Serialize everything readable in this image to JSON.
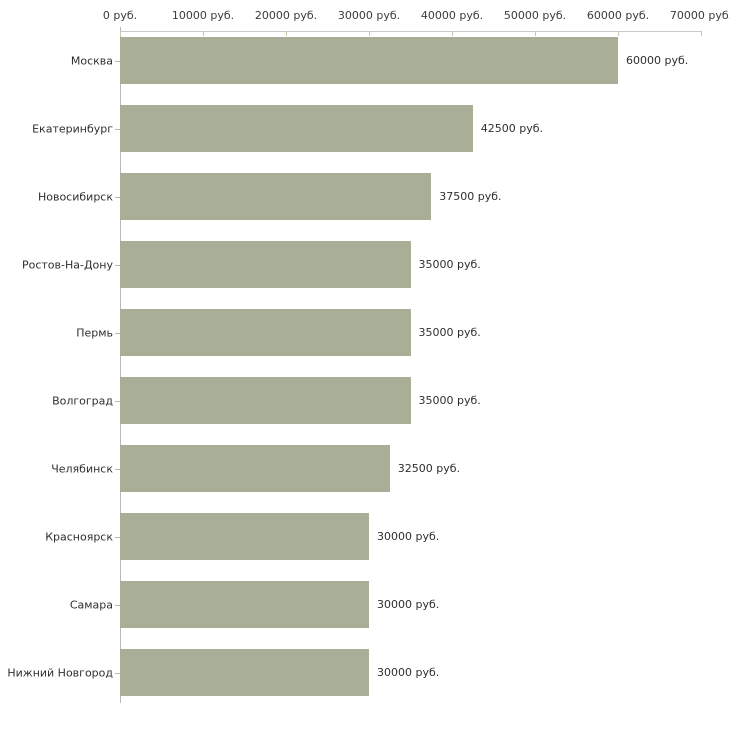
{
  "chart_data": {
    "type": "bar",
    "orientation": "horizontal",
    "title": "",
    "xlabel": "",
    "ylabel": "",
    "unit": "руб.",
    "categories": [
      "Москва",
      "Екатеринбург",
      "Новосибирск",
      "Ростов-На-Дону",
      "Пермь",
      "Волгоград",
      "Челябинск",
      "Красноярск",
      "Самара",
      "Нижний Новгород"
    ],
    "values": [
      60000,
      42500,
      37500,
      35000,
      35000,
      35000,
      32500,
      30000,
      30000,
      30000
    ],
    "value_labels": [
      "60000 руб.",
      "42500 руб.",
      "37500 руб.",
      "35000 руб.",
      "35000 руб.",
      "35000 руб.",
      "32500 руб.",
      "30000 руб.",
      "30000 руб.",
      "30000 руб."
    ],
    "x_ticks": [
      0,
      10000,
      20000,
      30000,
      40000,
      50000,
      60000,
      70000
    ],
    "x_tick_labels": [
      "0 руб.",
      "10000 руб.",
      "20000 руб.",
      "30000 руб.",
      "40000 руб.",
      "50000 руб.",
      "60000 руб.",
      "70000 руб."
    ],
    "xlim": [
      0,
      70000
    ],
    "grid": false,
    "legend": "none",
    "bar_color": "#a9af96",
    "axis_color": "#c9c9c9",
    "tick_color": "#c9c7a9"
  }
}
